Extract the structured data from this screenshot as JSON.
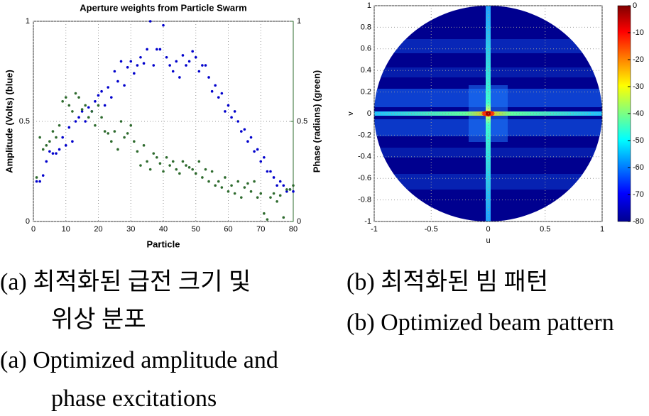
{
  "chart_data": [
    {
      "type": "scatter",
      "title": "Aperture weights from Particle Swarm",
      "xlabel": "Particle",
      "ylabel": "Amplitude (Volts) (blue)",
      "y2label": "Phase (radians) (green)",
      "x": [
        1,
        2,
        3,
        4,
        5,
        6,
        7,
        8,
        9,
        10,
        11,
        12,
        13,
        14,
        15,
        16,
        17,
        18,
        19,
        20,
        21,
        22,
        23,
        24,
        25,
        26,
        27,
        28,
        29,
        30,
        31,
        32,
        33,
        34,
        35,
        36,
        37,
        38,
        39,
        40,
        41,
        42,
        43,
        44,
        45,
        46,
        47,
        48,
        49,
        50,
        51,
        52,
        53,
        54,
        55,
        56,
        57,
        58,
        59,
        60,
        61,
        62,
        63,
        64,
        65,
        66,
        67,
        68,
        69,
        70,
        71,
        72,
        73,
        74,
        75,
        76,
        77,
        78,
        79,
        80
      ],
      "series": [
        {
          "name": "Amplitude",
          "color": "#0000cc",
          "values": [
            0.2,
            0.2,
            0.23,
            0.3,
            0.35,
            0.34,
            0.34,
            0.36,
            0.42,
            0.38,
            0.47,
            0.4,
            0.5,
            0.52,
            0.55,
            0.5,
            0.57,
            0.55,
            0.6,
            0.63,
            0.65,
            0.58,
            0.67,
            0.62,
            0.75,
            0.7,
            0.8,
            0.68,
            0.77,
            0.8,
            0.74,
            0.78,
            0.82,
            0.79,
            0.86,
            1.0,
            0.78,
            0.86,
            0.86,
            0.98,
            0.82,
            0.78,
            0.75,
            0.8,
            0.72,
            0.83,
            0.78,
            0.8,
            0.85,
            0.82,
            0.75,
            0.78,
            0.78,
            0.72,
            0.65,
            0.68,
            0.62,
            0.64,
            0.55,
            0.58,
            0.52,
            0.55,
            0.5,
            0.45,
            0.46,
            0.4,
            0.42,
            0.35,
            0.36,
            0.3,
            0.32,
            0.25,
            0.25,
            0.22,
            0.18,
            0.2,
            0.18,
            0.15,
            0.16,
            0.15
          ]
        },
        {
          "name": "Phase",
          "color": "#2e6b2e",
          "axis": "y2",
          "values": [
            0.22,
            0.42,
            0.36,
            0.38,
            0.4,
            0.45,
            0.42,
            0.48,
            0.6,
            0.62,
            0.58,
            0.55,
            0.64,
            0.62,
            0.56,
            0.58,
            0.52,
            0.55,
            0.48,
            0.58,
            0.52,
            0.45,
            0.44,
            0.4,
            0.45,
            0.36,
            0.5,
            0.42,
            0.44,
            0.48,
            0.4,
            0.35,
            0.28,
            0.38,
            0.3,
            0.26,
            0.34,
            0.32,
            0.29,
            0.25,
            0.32,
            0.28,
            0.3,
            0.26,
            0.24,
            0.3,
            0.28,
            0.27,
            0.26,
            0.24,
            0.3,
            0.22,
            0.26,
            0.2,
            0.25,
            0.18,
            0.2,
            0.17,
            0.22,
            0.15,
            0.18,
            0.14,
            0.2,
            0.12,
            0.17,
            0.19,
            0.15,
            0.2,
            0.12,
            0.14,
            0.04,
            0.01,
            0.12,
            0.14,
            0.1,
            0.13,
            0.02,
            0.16,
            0.16,
            0.18
          ]
        }
      ],
      "xlim": [
        0,
        80
      ],
      "xticks": [
        0,
        10,
        20,
        30,
        40,
        50,
        60,
        70,
        80
      ],
      "ylim": [
        0,
        1
      ],
      "yticks": [
        0,
        0.5,
        1
      ],
      "y2lim": [
        0,
        1
      ],
      "y2ticks": [
        0,
        0.5,
        1
      ],
      "grid": true
    },
    {
      "type": "heatmap",
      "xlabel": "u",
      "ylabel": "v",
      "xlim": [
        -1,
        1
      ],
      "xticks": [
        -1,
        -0.5,
        0,
        0.5,
        1
      ],
      "ylim": [
        -1,
        1
      ],
      "yticks": [
        -1,
        -0.8,
        -0.6,
        -0.4,
        -0.2,
        0,
        0.2,
        0.4,
        0.6,
        0.8,
        1
      ],
      "colorbar_lim": [
        -80,
        0
      ],
      "colorbar_ticks": [
        0,
        -10,
        -20,
        -30,
        -40,
        -50,
        -60,
        -70,
        -80
      ],
      "grid": true
    }
  ],
  "captions": {
    "a_korean": [
      "(a) 최적화된 급전 크기 및",
      "위상 분포"
    ],
    "a_english": [
      "(a) Optimized amplitude and",
      "phase excitations"
    ],
    "b_korean": "(b) 최적화된 빔 패턴",
    "b_english": "(b) Optimized beam pattern"
  }
}
